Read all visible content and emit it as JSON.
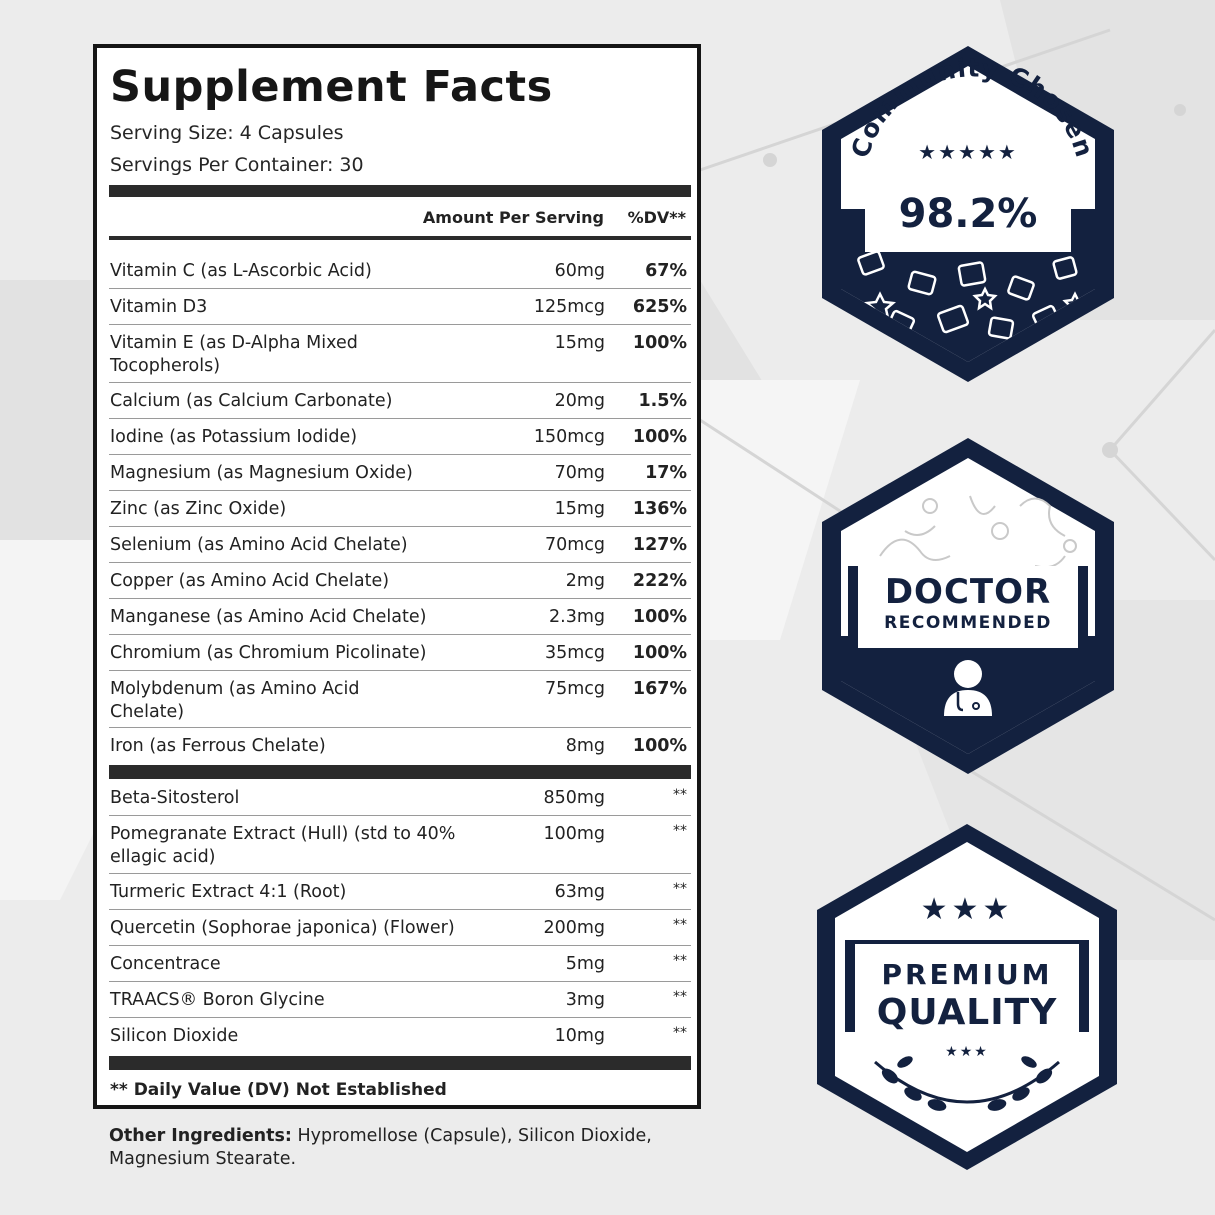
{
  "facts": {
    "title": "Supplement Facts",
    "serving_size": "Serving Size: 4 Capsules",
    "servings_per_container": "Servings Per Container: 30",
    "col_amount": "Amount Per Serving",
    "col_dv": "%DV**",
    "vitamins": [
      {
        "name": "Vitamin C (as L-Ascorbic Acid)",
        "amount": "60mg",
        "dv": "67%"
      },
      {
        "name": "Vitamin D3",
        "amount": "125mcg",
        "dv": "625%"
      },
      {
        "name": "Vitamin E (as D-Alpha Mixed Tocopherols)",
        "amount": "15mg",
        "dv": "100%"
      },
      {
        "name": "Calcium (as Calcium Carbonate)",
        "amount": "20mg",
        "dv": "1.5%"
      },
      {
        "name": "Iodine (as Potassium Iodide)",
        "amount": "150mcg",
        "dv": "100%"
      },
      {
        "name": "Magnesium (as Magnesium Oxide)",
        "amount": "70mg",
        "dv": "17%"
      },
      {
        "name": "Zinc (as Zinc Oxide)",
        "amount": "15mg",
        "dv": "136%"
      },
      {
        "name": "Selenium (as Amino Acid Chelate)",
        "amount": "70mcg",
        "dv": "127%"
      },
      {
        "name": "Copper (as Amino Acid Chelate)",
        "amount": "2mg",
        "dv": "222%"
      },
      {
        "name": "Manganese (as Amino Acid Chelate)",
        "amount": "2.3mg",
        "dv": "100%"
      },
      {
        "name": "Chromium (as Chromium Picolinate)",
        "amount": "35mcg",
        "dv": "100%"
      },
      {
        "name": "Molybdenum (as Amino Acid Chelate)",
        "amount": "75mcg",
        "dv": "167%"
      },
      {
        "name": "Iron (as Ferrous Chelate)",
        "amount": "8mg",
        "dv": "100%"
      }
    ],
    "others": [
      {
        "name": "Beta-Sitosterol",
        "amount": "850mg",
        "dv": "**"
      },
      {
        "name": "Pomegranate Extract (Hull) (std  to 40% ellagic acid)",
        "amount": "100mg",
        "dv": "**"
      },
      {
        "name": "Turmeric Extract 4:1 (Root)",
        "amount": "63mg",
        "dv": "**"
      },
      {
        "name": "Quercetin (Sophorae japonica) (Flower)",
        "amount": "200mg",
        "dv": "**"
      },
      {
        "name": "Concentrace",
        "amount": "5mg",
        "dv": "**"
      },
      {
        "name": "TRAACS® Boron Glycine",
        "amount": "3mg",
        "dv": "**"
      },
      {
        "name": "Silicon Dioxide",
        "amount": "10mg",
        "dv": "**"
      }
    ],
    "footnote": "** Daily Value (DV) Not Established"
  },
  "other_ingredients": {
    "label": "Other Ingredients:",
    "text": " Hypromellose (Capsule), Silicon Dioxide, Magnesium Stearate."
  },
  "badges": {
    "community": {
      "arc_text": "Community Chosen",
      "stars": "★★★★★",
      "percent": "98.2%"
    },
    "doctor": {
      "line1": "DOCTOR",
      "line2": "RECOMMENDED"
    },
    "premium": {
      "stars": "★★★",
      "line1": "PREMIUM",
      "line2": "QUALITY",
      "small_stars": "★★★"
    }
  },
  "colors": {
    "navy": "#13213f",
    "panel_border": "#151515",
    "bar": "#2b2b2b"
  }
}
